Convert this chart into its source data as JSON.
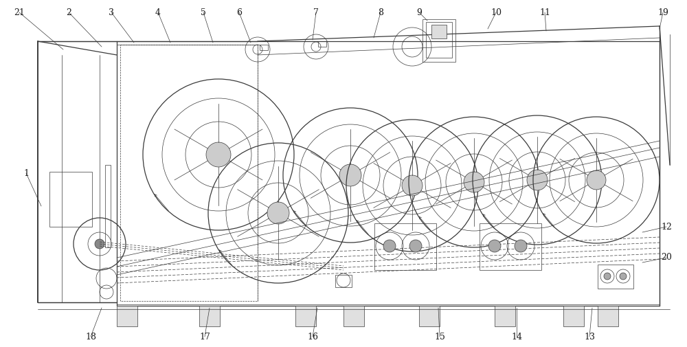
{
  "fig_width": 10.0,
  "fig_height": 5.05,
  "dpi": 100,
  "bg_color": "#ffffff",
  "lc": "#3a3a3a",
  "tl": 0.5,
  "ml": 0.9,
  "thk": 1.4
}
